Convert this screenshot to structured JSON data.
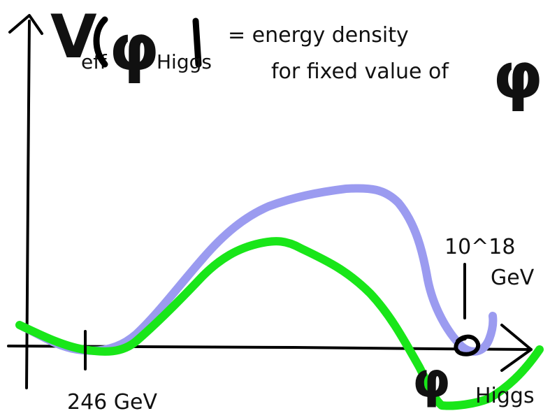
{
  "title": {
    "v": "V",
    "sub_eff": "eff",
    "phi": "φ",
    "sub_higgs": "Higgs"
  },
  "definition": {
    "line1": "= energy density",
    "line2": "for fixed value of",
    "phi": "φ"
  },
  "x_axis": {
    "phi": "φ",
    "sub_higgs": "Higgs"
  },
  "markers": {
    "low_vev": "246 GeV",
    "high_scale_line1": "10^18",
    "high_scale_line2": "GeV"
  },
  "chart_data": {
    "type": "line",
    "title": "",
    "xlabel": "",
    "ylabel": "",
    "series": [
      {
        "name": "",
        "color": "#9b9bf0"
      },
      {
        "name": "",
        "color": "#19e619"
      }
    ]
  },
  "colors": {
    "ink": "#000000",
    "blue_curve": "#9b9bf0",
    "green_curve": "#19e619"
  }
}
